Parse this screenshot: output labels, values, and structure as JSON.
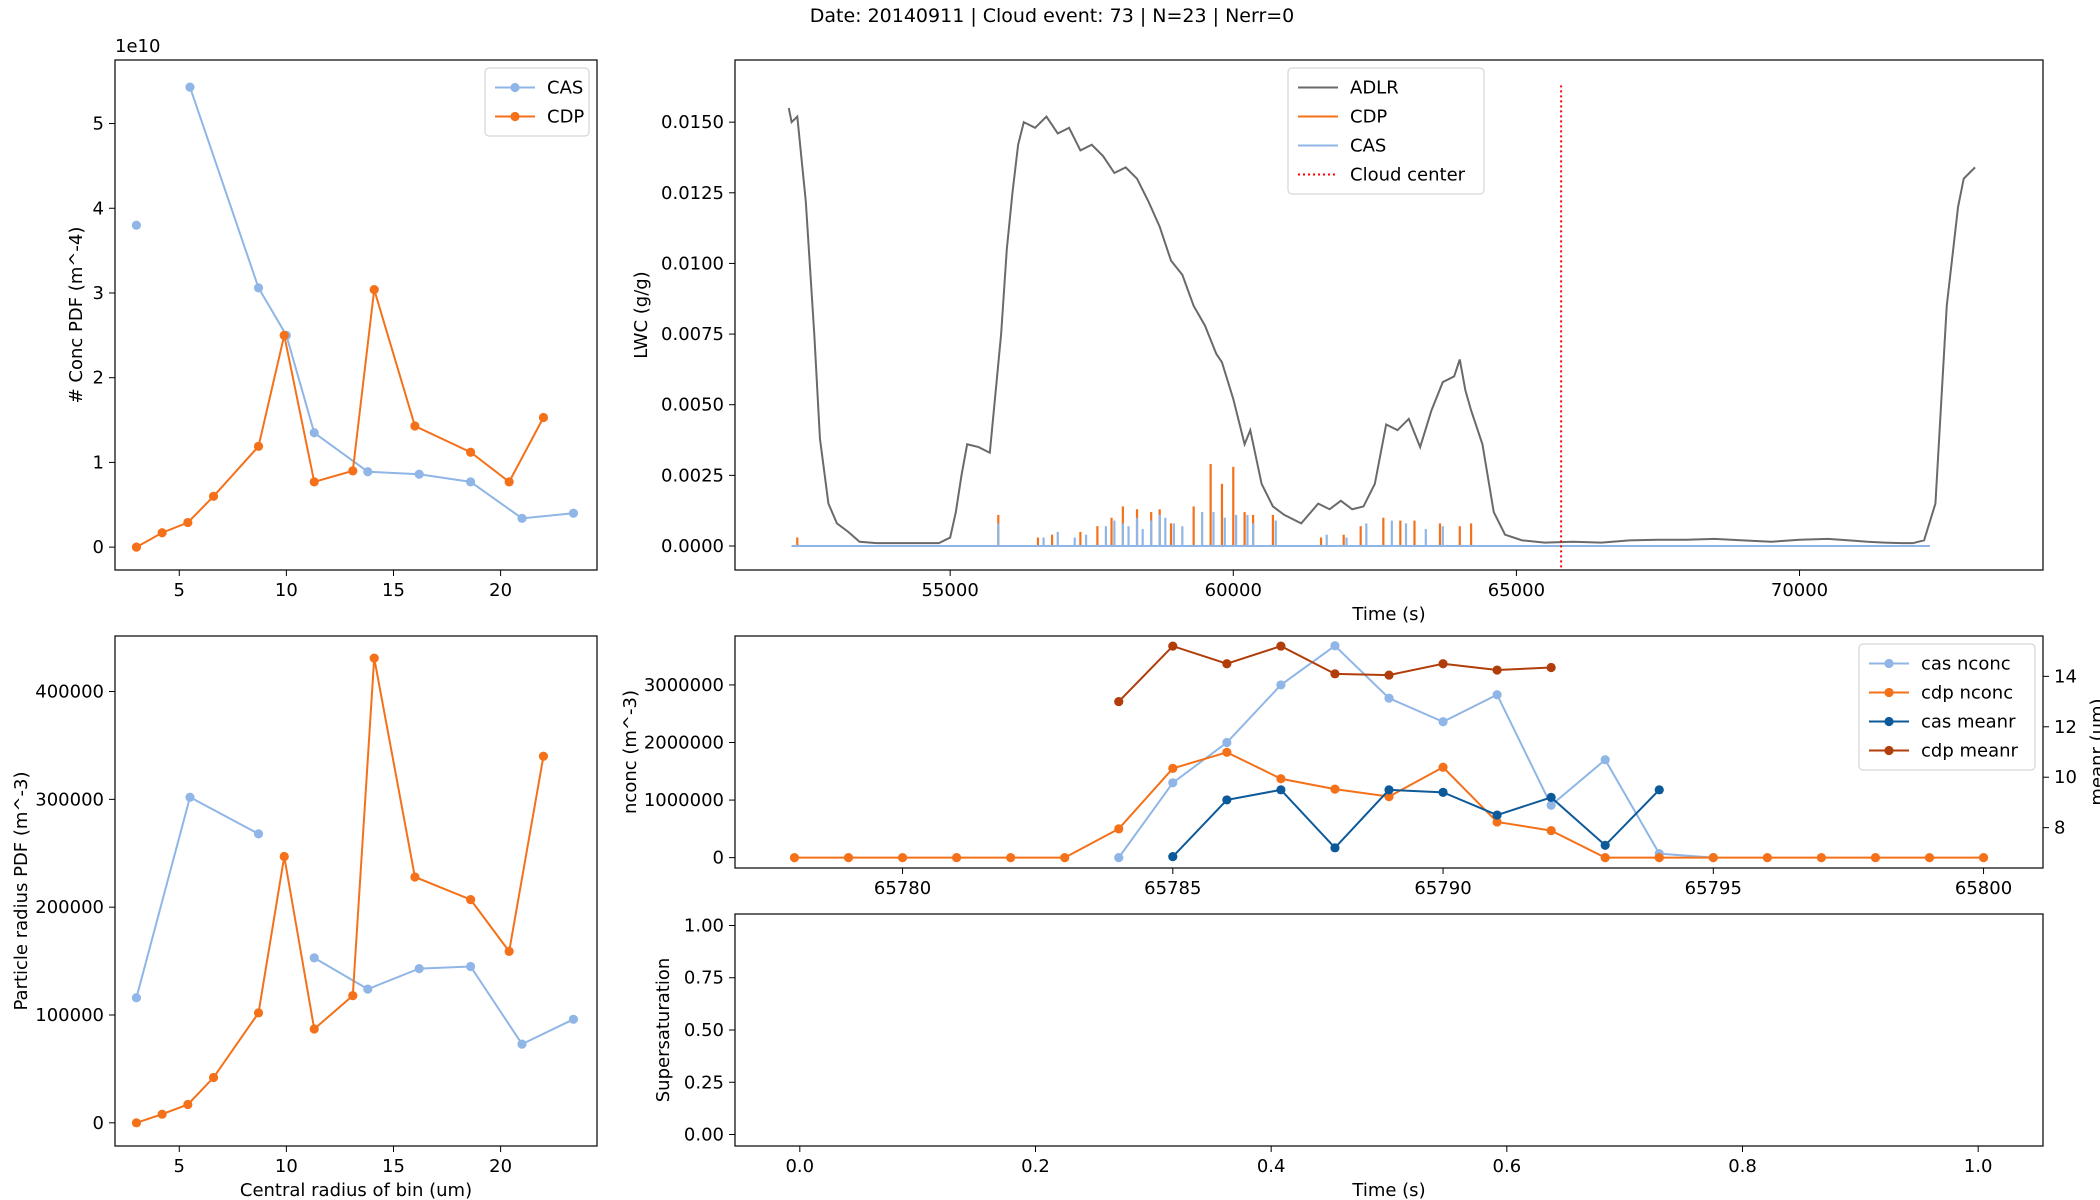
{
  "suptitle": "Date: 20140911 | Cloud event: 73 | N=23 | Nerr=0",
  "colors": {
    "cas": "#8fb6e6",
    "cdp": "#f4711a",
    "adlr": "#6a6a6a",
    "cas_meanr": "#0d5a9a",
    "cdp_meanr": "#b13d0a",
    "center": "#ff0000"
  },
  "chart_data": [
    {
      "id": "conc_pdf",
      "type": "line",
      "xlabel": "",
      "ylabel": "# Conc PDF (m^-4)",
      "offset_text": "1e10",
      "xlim": [
        2.0,
        24.5
      ],
      "ylim": [
        -0.27,
        5.75
      ],
      "xticks": [
        5,
        10,
        15,
        20
      ],
      "yticks": [
        0,
        1,
        2,
        3,
        4,
        5
      ],
      "legend": "top-right",
      "series": [
        {
          "name": "CAS",
          "color_key": "cas",
          "x": [
            3.0,
            4.5,
            5.5,
            8.7,
            10.0,
            11.3,
            13.8,
            16.2,
            18.6,
            21.0,
            23.4
          ],
          "y": [
            3.8,
            null,
            5.43,
            3.06,
            2.5,
            1.35,
            0.89,
            0.86,
            0.77,
            0.34,
            0.4
          ]
        },
        {
          "name": "CDP",
          "color_key": "cdp",
          "x": [
            3.0,
            4.2,
            5.4,
            6.6,
            8.7,
            9.9,
            11.3,
            13.1,
            14.1,
            16.0,
            18.6,
            20.4,
            22.0
          ],
          "y": [
            0.0,
            0.17,
            0.29,
            0.6,
            1.19,
            2.5,
            0.77,
            0.9,
            3.04,
            1.43,
            1.12,
            0.77,
            1.53
          ]
        }
      ]
    },
    {
      "id": "lwc",
      "type": "line",
      "xlabel": "Time (s)",
      "ylabel": "LWC (g/g)",
      "xlim": [
        51200,
        74300
      ],
      "ylim": [
        -0.00085,
        0.0172
      ],
      "xticks": [
        55000,
        60000,
        65000,
        70000
      ],
      "yticks": [
        0.0,
        0.0025,
        0.005,
        0.0075,
        0.01,
        0.0125,
        0.015
      ],
      "ytick_labels": [
        "0.0000",
        "0.0025",
        "0.0050",
        "0.0075",
        "0.0100",
        "0.0125",
        "0.0150"
      ],
      "legend": "top-center",
      "legend_entries": [
        "ADLR",
        "CDP",
        "CAS",
        "Cloud center"
      ],
      "adlr": {
        "x": [
          52150,
          52200,
          52300,
          52450,
          52600,
          52700,
          52850,
          53000,
          53200,
          53400,
          53700,
          54000,
          54500,
          54800,
          55000,
          55100,
          55200,
          55300,
          55500,
          55700,
          55900,
          56000,
          56100,
          56200,
          56300,
          56500,
          56700,
          56900,
          57100,
          57300,
          57500,
          57700,
          57900,
          58100,
          58300,
          58500,
          58700,
          58900,
          59100,
          59300,
          59500,
          59700,
          59800,
          60000,
          60200,
          60300,
          60500,
          60700,
          60900,
          61200,
          61500,
          61700,
          61900,
          62100,
          62300,
          62500,
          62700,
          62900,
          63100,
          63300,
          63500,
          63700,
          63900,
          64000,
          64100,
          64200,
          64400,
          64600,
          64800,
          65100,
          65500,
          66000,
          66500,
          67000,
          67500,
          68000,
          68500,
          69000,
          69500,
          70000,
          70500,
          71000,
          71200,
          71500,
          71800,
          72000,
          72200,
          72400,
          72600,
          72800,
          72900,
          73000,
          73100
        ],
        "y": [
          0.0155,
          0.015,
          0.0152,
          0.0122,
          0.0075,
          0.0038,
          0.0015,
          0.0008,
          0.0005,
          0.00015,
          0.0001,
          0.0001,
          0.0001,
          0.0001,
          0.0003,
          0.0012,
          0.0025,
          0.0036,
          0.0035,
          0.0033,
          0.0075,
          0.0105,
          0.0125,
          0.0142,
          0.015,
          0.0148,
          0.0152,
          0.0146,
          0.0148,
          0.014,
          0.0142,
          0.0138,
          0.0132,
          0.0134,
          0.013,
          0.0122,
          0.0113,
          0.0101,
          0.0096,
          0.0085,
          0.0078,
          0.0068,
          0.0065,
          0.0052,
          0.0036,
          0.0041,
          0.0022,
          0.0014,
          0.0011,
          0.0008,
          0.0015,
          0.0013,
          0.0016,
          0.0013,
          0.0014,
          0.0022,
          0.0043,
          0.0041,
          0.0045,
          0.0035,
          0.0048,
          0.0058,
          0.006,
          0.0066,
          0.0055,
          0.0048,
          0.0036,
          0.0012,
          0.0004,
          0.0002,
          0.00012,
          0.00015,
          0.00012,
          0.0002,
          0.00022,
          0.00022,
          0.00025,
          0.0002,
          0.00015,
          0.00022,
          0.00025,
          0.00018,
          0.00015,
          0.00012,
          0.0001,
          0.0001,
          0.0002,
          0.0015,
          0.0085,
          0.012,
          0.013,
          0.0132,
          0.0134
        ]
      },
      "spikes_cdp": [
        [
          52300,
          0.0003
        ],
        [
          55850,
          0.0011
        ],
        [
          56550,
          0.0003
        ],
        [
          56800,
          0.0004
        ],
        [
          57300,
          0.0005
        ],
        [
          57600,
          0.0007
        ],
        [
          57850,
          0.001
        ],
        [
          58050,
          0.0014
        ],
        [
          58300,
          0.0013
        ],
        [
          58550,
          0.0012
        ],
        [
          58700,
          0.0013
        ],
        [
          58900,
          0.0008
        ],
        [
          59300,
          0.0014
        ],
        [
          59600,
          0.0029
        ],
        [
          59800,
          0.0022
        ],
        [
          60000,
          0.0028
        ],
        [
          60200,
          0.0012
        ],
        [
          60350,
          0.0011
        ],
        [
          60700,
          0.0011
        ],
        [
          61550,
          0.0003
        ],
        [
          61950,
          0.0004
        ],
        [
          62250,
          0.0007
        ],
        [
          62650,
          0.001
        ],
        [
          62950,
          0.0009
        ],
        [
          63200,
          0.0009
        ],
        [
          63650,
          0.0008
        ],
        [
          64000,
          0.0007
        ],
        [
          64200,
          0.0008
        ]
      ],
      "spikes_cas": [
        [
          55850,
          0.0008
        ],
        [
          56650,
          0.0003
        ],
        [
          56900,
          0.0005
        ],
        [
          57200,
          0.0003
        ],
        [
          57400,
          0.0004
        ],
        [
          57750,
          0.0007
        ],
        [
          57900,
          0.0009
        ],
        [
          58050,
          0.0008
        ],
        [
          58150,
          0.0007
        ],
        [
          58300,
          0.001
        ],
        [
          58400,
          0.0006
        ],
        [
          58550,
          0.0009
        ],
        [
          58700,
          0.0011
        ],
        [
          58800,
          0.001
        ],
        [
          58950,
          0.0008
        ],
        [
          59100,
          0.0007
        ],
        [
          59450,
          0.0012
        ],
        [
          59650,
          0.0012
        ],
        [
          59850,
          0.001
        ],
        [
          60050,
          0.0011
        ],
        [
          60250,
          0.0011
        ],
        [
          60350,
          0.0008
        ],
        [
          60750,
          0.0009
        ],
        [
          61650,
          0.0004
        ],
        [
          62000,
          0.0003
        ],
        [
          62350,
          0.0008
        ],
        [
          62800,
          0.0009
        ],
        [
          63050,
          0.0008
        ],
        [
          63400,
          0.0006
        ],
        [
          63700,
          0.0007
        ]
      ],
      "flat_range": [
        52200,
        72300
      ],
      "cloud_center_x": 65790
    },
    {
      "id": "radius_pdf",
      "type": "line",
      "xlabel": "Central radius of bin (um)",
      "ylabel": "Particle radius PDF (m^-3)",
      "xlim": [
        2.0,
        24.5
      ],
      "ylim": [
        -21500,
        451500
      ],
      "xticks": [
        5,
        10,
        15,
        20
      ],
      "yticks": [
        0,
        100000,
        200000,
        300000,
        400000
      ],
      "series": [
        {
          "name": "CAS",
          "color_key": "cas",
          "x": [
            3.0,
            5.5,
            8.7,
            10.0,
            11.3,
            13.8,
            16.2,
            18.6,
            21.0,
            23.4
          ],
          "y": [
            116000,
            302000,
            268000,
            null,
            153000,
            124000,
            143000,
            145000,
            73000,
            96000
          ]
        },
        {
          "name": "CDP",
          "color_key": "cdp",
          "x": [
            3.0,
            4.2,
            5.4,
            6.6,
            8.7,
            9.9,
            11.3,
            13.1,
            14.1,
            16.0,
            18.6,
            20.4,
            22.0
          ],
          "y": [
            0,
            8000,
            17000,
            42000,
            102000,
            247000,
            87000,
            118000,
            431000,
            228000,
            207000,
            159000,
            340000
          ]
        }
      ]
    },
    {
      "id": "nconc_meanr",
      "type": "line",
      "xlabel": "",
      "ylabel": "nconc (m^-3)",
      "y2label": "meanr (um)",
      "xlim": [
        65776.9,
        65801.1
      ],
      "ylim": [
        -180000,
        3850000
      ],
      "y2lim": [
        6.4,
        15.6
      ],
      "xticks": [
        65780,
        65785,
        65790,
        65795,
        65800
      ],
      "yticks": [
        0,
        1000000,
        2000000,
        3000000
      ],
      "y2ticks": [
        8,
        10,
        12,
        14
      ],
      "legend": "top-right",
      "series": [
        {
          "name": "cas nconc",
          "axis": "left",
          "color_key": "cas",
          "x": [
            65784,
            65785,
            65786,
            65787,
            65788,
            65789,
            65790,
            65791,
            65792,
            65793,
            65794,
            65795
          ],
          "y": [
            0,
            1300000,
            2000000,
            3000000,
            3680000,
            2770000,
            2360000,
            2830000,
            910000,
            1700000,
            70000,
            0
          ]
        },
        {
          "name": "cdp nconc",
          "axis": "left",
          "color_key": "cdp",
          "x": [
            65778,
            65779,
            65780,
            65781,
            65782,
            65783,
            65784,
            65785,
            65786,
            65787,
            65788,
            65789,
            65790,
            65791,
            65792,
            65793,
            65794,
            65795,
            65796,
            65797,
            65798,
            65799,
            65800
          ],
          "y": [
            0,
            0,
            0,
            0,
            0,
            0,
            500000,
            1550000,
            1830000,
            1370000,
            1190000,
            1060000,
            1570000,
            620000,
            470000,
            0,
            0,
            0,
            0,
            0,
            0,
            0,
            0
          ]
        },
        {
          "name": "cas meanr",
          "axis": "right",
          "color_key": "cas_meanr",
          "x": [
            65785,
            65786,
            65787,
            65788,
            65789,
            65790,
            65791,
            65792,
            65793,
            65794
          ],
          "y": [
            6.85,
            9.1,
            9.5,
            7.2,
            9.5,
            9.4,
            8.5,
            9.2,
            7.3,
            9.5
          ]
        },
        {
          "name": "cdp meanr",
          "axis": "right",
          "color_key": "cdp_meanr",
          "x": [
            65784,
            65785,
            65786,
            65787,
            65788,
            65789,
            65790,
            65791,
            65792
          ],
          "y": [
            13.0,
            15.2,
            14.5,
            15.2,
            14.1,
            14.05,
            14.5,
            14.25,
            14.35
          ]
        }
      ]
    },
    {
      "id": "supersat",
      "type": "line",
      "xlabel": "Time (s)",
      "ylabel": "Supersaturation",
      "xlim": [
        -0.055,
        1.055
      ],
      "ylim": [
        -0.055,
        1.055
      ],
      "xticks": [
        0.0,
        0.2,
        0.4,
        0.6,
        0.8,
        1.0
      ],
      "xtick_labels": [
        "0.0",
        "0.2",
        "0.4",
        "0.6",
        "0.8",
        "1.0"
      ],
      "yticks": [
        0.0,
        0.25,
        0.5,
        0.75,
        1.0
      ],
      "ytick_labels": [
        "0.00",
        "0.25",
        "0.50",
        "0.75",
        "1.00"
      ],
      "series": []
    }
  ]
}
